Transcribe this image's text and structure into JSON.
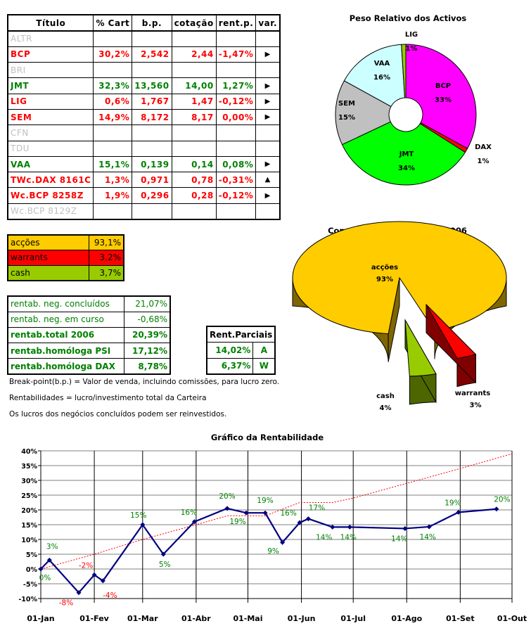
{
  "portfolio": {
    "headers": [
      "Título",
      "% Cart",
      "b.p.",
      "cotação",
      "rent.p.",
      "var."
    ],
    "rows": [
      {
        "name": "ALTR",
        "cart": "",
        "bp": "",
        "cot": "",
        "rent": "",
        "var": "",
        "status": "inactive"
      },
      {
        "name": "BCP",
        "cart": "30,2%",
        "bp": "2,542",
        "cot": "2,44",
        "rent": "-1,47%",
        "var": "▶",
        "status": "red"
      },
      {
        "name": "BRI",
        "cart": "",
        "bp": "",
        "cot": "",
        "rent": "",
        "var": "",
        "status": "inactive"
      },
      {
        "name": "JMT",
        "cart": "32,3%",
        "bp": "13,560",
        "cot": "14,00",
        "rent": "1,27%",
        "var": "▶",
        "status": "green"
      },
      {
        "name": "LIG",
        "cart": "0,6%",
        "bp": "1,767",
        "cot": "1,47",
        "rent": "-0,12%",
        "var": "▶",
        "status": "red"
      },
      {
        "name": "SEM",
        "cart": "14,9%",
        "bp": "8,172",
        "cot": "8,17",
        "rent": "0,00%",
        "var": "▶",
        "status": "red"
      },
      {
        "name": "CFN",
        "cart": "",
        "bp": "",
        "cot": "",
        "rent": "",
        "var": "",
        "status": "inactive"
      },
      {
        "name": "TDU",
        "cart": "",
        "bp": "",
        "cot": "",
        "rent": "",
        "var": "",
        "status": "inactive"
      },
      {
        "name": "VAA",
        "cart": "15,1%",
        "bp": "0,139",
        "cot": "0,14",
        "rent": "0,08%",
        "var": "▶",
        "status": "green"
      },
      {
        "name": "TWc.DAX 8161C",
        "cart": "1,3%",
        "bp": "0,971",
        "cot": "0,78",
        "rent": "-0,31%",
        "var": "▲",
        "status": "red"
      },
      {
        "name": "Wc.BCP 8258Z",
        "cart": "1,9%",
        "bp": "0,296",
        "cot": "0,28",
        "rent": "-0,12%",
        "var": "▶",
        "status": "red"
      },
      {
        "name": "Wc.BCP 8129Z",
        "cart": "",
        "bp": "",
        "cot": "",
        "rent": "",
        "var": "",
        "status": "inactive"
      }
    ]
  },
  "allocation": [
    {
      "label": "acções",
      "value": "93,1%",
      "color": "#ffcc00"
    },
    {
      "label": "warrants",
      "value": "3,2%",
      "color": "#ff0000"
    },
    {
      "label": "cash",
      "value": "3,7%",
      "color": "#99cc00"
    }
  ],
  "rentab": [
    {
      "label": "rentab. neg. concluídos",
      "value": "21,07%",
      "bold": false
    },
    {
      "label": "rentab. neg. em curso",
      "value": "-0,68%",
      "bold": false
    },
    {
      "label": "rentab.total 2006",
      "value": "20,39%",
      "bold": true
    },
    {
      "label": "rentab.homóloga PSI",
      "value": "17,12%",
      "bold": true
    },
    {
      "label": "rentab.homóloga DAX",
      "value": "8,78%",
      "bold": true
    }
  ],
  "partials": {
    "header": "Rent.Parciais",
    "rows": [
      {
        "value": "14,02%",
        "code": "A"
      },
      {
        "value": "6,37%",
        "code": "W"
      }
    ]
  },
  "notes": [
    "Break-point(b.p.) = Valor de venda, incluindo comissões, para lucro zero.",
    "Rentabilidades = lucro/investimento total da Carteira",
    "Os lucros dos negócios concluídos podem ser reinvestidos."
  ],
  "chart_data": [
    {
      "type": "pie",
      "variant": "doughnut",
      "title": "Peso Relativo dos Activos",
      "slices": [
        {
          "label": "BCP",
          "value": 33,
          "text": "33%",
          "color": "#ff00ff"
        },
        {
          "label": "DAX",
          "value": 1,
          "text": "1%",
          "color": "#ff0000"
        },
        {
          "label": "JMT",
          "value": 34,
          "text": "34%",
          "color": "#00ff00"
        },
        {
          "label": "SEM",
          "value": 15,
          "text": "15%",
          "color": "#c0c0c0"
        },
        {
          "label": "VAA",
          "value": 16,
          "text": "16%",
          "color": "#ccffff"
        },
        {
          "label": "LIG",
          "value": 1,
          "text": "1%",
          "color": "#99cc00"
        }
      ]
    },
    {
      "type": "pie",
      "variant": "3d-exploded",
      "title": "Composição Carteira JAS*2006",
      "slices": [
        {
          "label": "acções",
          "value": 93,
          "text": "93%",
          "color": "#ffcc00"
        },
        {
          "label": "warrants",
          "value": 3,
          "text": "3%",
          "color": "#ff0000"
        },
        {
          "label": "cash",
          "value": 4,
          "text": "4%",
          "color": "#99cc00"
        }
      ]
    },
    {
      "type": "line",
      "title": "Gráfico da Rentabilidade",
      "grid": true,
      "ylim": [
        -10,
        40
      ],
      "yticks": [
        "-10%",
        "-5%",
        "0%",
        "5%",
        "10%",
        "15%",
        "20%",
        "25%",
        "30%",
        "35%",
        "40%"
      ],
      "xticks": [
        "01-Jan",
        "01-Fev",
        "01-Mar",
        "01-Abr",
        "01-Mai",
        "01-Jun",
        "01-Jul",
        "01-Ago",
        "01-Set",
        "01-Out"
      ],
      "series": [
        {
          "color": "#000080",
          "style": "solid-markers",
          "points": [
            [
              "2006-01-01",
              0,
              "0%"
            ],
            [
              "2006-01-06",
              3,
              "3%"
            ],
            [
              "2006-01-23",
              -8,
              "-8%"
            ],
            [
              "2006-02-01",
              -2,
              "-2%"
            ],
            [
              "2006-02-06",
              -4,
              "-4%"
            ],
            [
              "2006-03-01",
              15,
              "15%"
            ],
            [
              "2006-03-13",
              5,
              "5%"
            ],
            [
              "2006-03-31",
              16,
              "16%"
            ],
            [
              "2006-04-19",
              20.5,
              "20%"
            ],
            [
              "2006-04-30",
              19,
              "19%"
            ],
            [
              "2006-05-11",
              19,
              "19%"
            ],
            [
              "2006-05-21",
              9,
              "9%"
            ],
            [
              "2006-05-31",
              15.7,
              "16%"
            ],
            [
              "2006-06-05",
              17,
              "17%"
            ],
            [
              "2006-06-19",
              14.2,
              "14%"
            ],
            [
              "2006-06-29",
              14.2,
              "14%"
            ],
            [
              "2006-07-31",
              13.7,
              "14%"
            ],
            [
              "2006-08-14",
              14.3,
              "14%"
            ],
            [
              "2006-08-31",
              19.2,
              "19%"
            ],
            [
              "2006-09-22",
              20.3,
              "20%"
            ]
          ]
        },
        {
          "color": "#ff0000",
          "style": "dotted",
          "points": [
            [
              "2006-01-01",
              0
            ],
            [
              "2006-02-01",
              5
            ],
            [
              "2006-03-01",
              10
            ],
            [
              "2006-04-01",
              15
            ],
            [
              "2006-04-19",
              18
            ],
            [
              "2006-05-11",
              18
            ],
            [
              "2006-05-31",
              22.5
            ],
            [
              "2006-06-19",
              22.5
            ],
            [
              "2006-07-01",
              24
            ],
            [
              "2006-08-01",
              29
            ],
            [
              "2006-09-01",
              34
            ],
            [
              "2006-10-01",
              39
            ]
          ]
        }
      ]
    }
  ]
}
